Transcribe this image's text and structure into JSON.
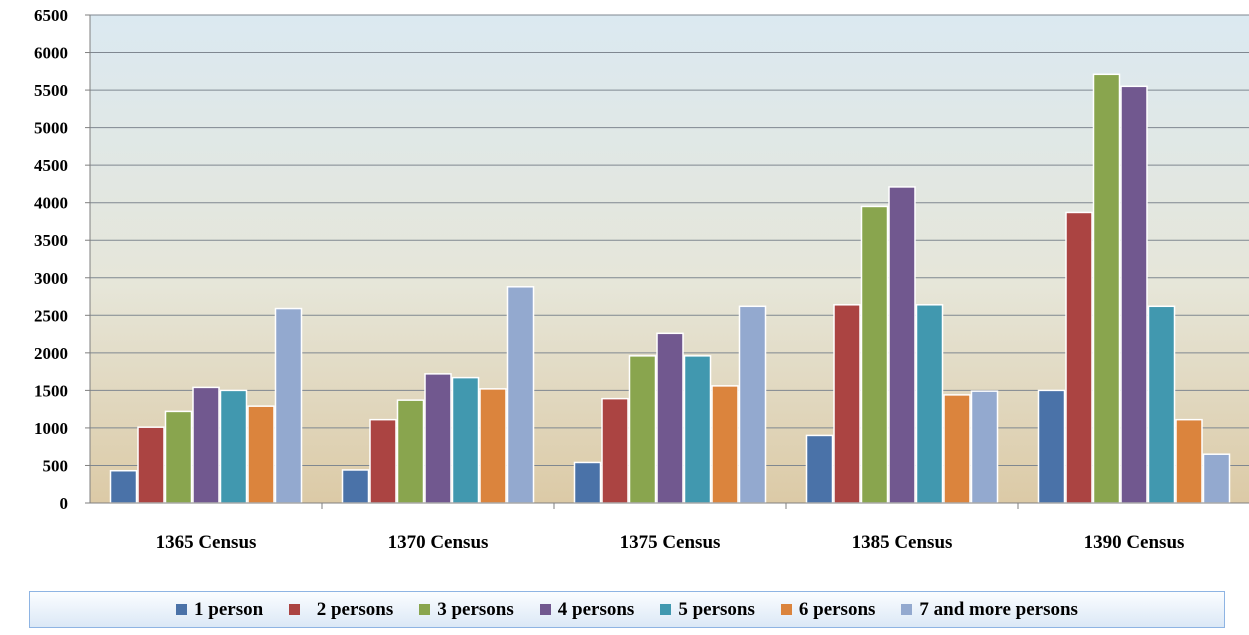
{
  "chart_data": {
    "type": "bar",
    "categories": [
      "1365 Census",
      "1370 Census",
      "1375 Census",
      "1385 Census",
      "1390 Census"
    ],
    "series": [
      {
        "name": "1 person",
        "color": "#4a72a8",
        "values": [
          430,
          440,
          540,
          900,
          1500
        ]
      },
      {
        "name": "  2 persons",
        "color": "#ab4442",
        "values": [
          1010,
          1110,
          1390,
          2640,
          3870
        ]
      },
      {
        "name": "3 persons",
        "color": "#89a54e",
        "values": [
          1220,
          1370,
          1960,
          3950,
          5710
        ]
      },
      {
        "name": "4 persons",
        "color": "#71588f",
        "values": [
          1540,
          1720,
          2260,
          4210,
          5550
        ]
      },
      {
        "name": "5 persons",
        "color": "#4198af",
        "values": [
          1500,
          1670,
          1960,
          2640,
          2620
        ]
      },
      {
        "name": "6 persons",
        "color": "#db843d",
        "values": [
          1290,
          1520,
          1560,
          1440,
          1110
        ]
      },
      {
        "name": "7 and more persons",
        "color": "#93a9cf",
        "values": [
          2590,
          2880,
          2620,
          1490,
          650
        ]
      }
    ],
    "yticks": [
      "0",
      "500",
      "1000",
      "1500",
      "2000",
      "2500",
      "3000",
      "3500",
      "4000",
      "4500",
      "5000",
      "5500",
      "6000",
      "6500"
    ],
    "ylim": [
      0,
      6500
    ],
    "grid": true,
    "legend_position": "bottom"
  }
}
